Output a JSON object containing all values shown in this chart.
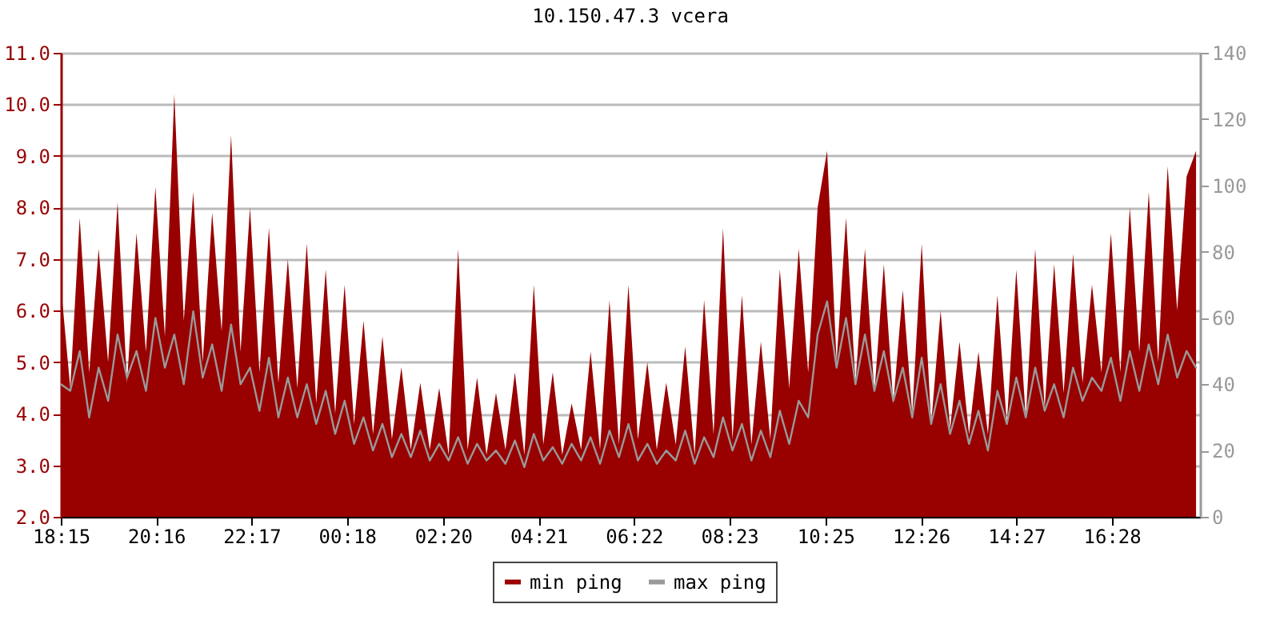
{
  "chart_data": {
    "type": "area",
    "title": "10.150.47.3 vcera",
    "x": [
      "--01-01T18:15",
      "--01-01T18:27",
      "--01-01T18:39",
      "--01-01T18:51",
      "--01-01T19:03",
      "--01-01T19:15",
      "--01-01T19:27",
      "--01-01T19:39",
      "--01-01T19:51",
      "--01-01T20:03",
      "--01-01T20:15",
      "--01-01T20:27",
      "--01-01T20:39",
      "--01-01T20:51",
      "--01-01T21:03",
      "--01-01T21:15",
      "--01-01T21:27",
      "--01-01T21:39",
      "--01-01T21:51",
      "--01-01T22:03",
      "--01-01T22:15",
      "--01-01T22:27",
      "--01-01T22:39",
      "--01-01T22:51",
      "--01-01T23:03",
      "--01-01T23:15",
      "--01-01T23:27",
      "--01-01T23:39",
      "--01-01T23:51",
      "--01-02T00:03",
      "--01-02T00:15",
      "--01-02T00:27",
      "--01-02T00:39",
      "--01-02T00:51",
      "--01-02T01:03",
      "--01-02T01:15",
      "--01-02T01:27",
      "--01-02T01:39",
      "--01-02T01:51",
      "--01-02T02:03",
      "--01-02T02:15",
      "--01-02T02:27",
      "--01-02T02:39",
      "--01-02T02:51",
      "--01-02T03:03",
      "--01-02T03:15",
      "--01-02T03:27",
      "--01-02T03:39",
      "--01-02T03:51",
      "--01-02T04:03",
      "--01-02T04:15",
      "--01-02T04:27",
      "--01-02T04:39",
      "--01-02T04:51",
      "--01-02T05:03",
      "--01-02T05:15",
      "--01-02T05:27",
      "--01-02T05:39",
      "--01-02T05:51",
      "--01-02T06:03",
      "--01-02T06:15",
      "--01-02T06:27",
      "--01-02T06:39",
      "--01-02T06:51",
      "--01-02T07:03",
      "--01-02T07:15",
      "--01-02T07:27",
      "--01-02T07:39",
      "--01-02T07:51",
      "--01-02T08:03",
      "--01-02T08:15",
      "--01-02T08:27",
      "--01-02T08:39",
      "--01-02T08:51",
      "--01-02T09:03",
      "--01-02T09:15",
      "--01-02T09:27",
      "--01-02T09:39",
      "--01-02T09:51",
      "--01-02T10:03",
      "--01-02T10:15",
      "--01-02T10:27",
      "--01-02T10:39",
      "--01-02T10:51",
      "--01-02T11:03",
      "--01-02T11:15",
      "--01-02T11:27",
      "--01-02T11:39",
      "--01-02T11:51",
      "--01-02T12:03",
      "--01-02T12:15",
      "--01-02T12:27",
      "--01-02T12:39",
      "--01-02T12:51",
      "--01-02T13:03",
      "--01-02T13:15",
      "--01-02T13:27",
      "--01-02T13:39",
      "--01-02T13:51",
      "--01-02T14:03",
      "--01-02T14:15",
      "--01-02T14:27",
      "--01-02T14:39",
      "--01-02T14:51",
      "--01-02T15:03",
      "--01-02T15:15",
      "--01-02T15:27",
      "--01-02T15:39",
      "--01-02T15:51",
      "--01-02T16:03",
      "--01-02T16:15",
      "--01-02T16:27",
      "--01-02T16:39",
      "--01-02T16:51",
      "--01-02T17:03",
      "--01-02T17:15",
      "--01-02T17:27",
      "--01-02T17:39",
      "--01-02T17:51",
      "--01-02T18:03",
      "--01-02T18:15"
    ],
    "series": [
      {
        "name": "min ping",
        "color": "#990000",
        "values": [
          6.5,
          4.5,
          7.8,
          4.8,
          7.2,
          5.0,
          8.1,
          4.6,
          7.5,
          5.2,
          8.4,
          5.5,
          10.2,
          5.8,
          8.3,
          5.0,
          7.9,
          5.6,
          9.4,
          5.2,
          8.0,
          4.8,
          7.6,
          4.6,
          7.0,
          4.5,
          7.3,
          4.2,
          6.8,
          4.0,
          6.5,
          3.8,
          5.8,
          3.6,
          5.5,
          3.5,
          4.9,
          3.3,
          4.6,
          3.3,
          4.5,
          3.2,
          7.2,
          3.3,
          4.7,
          3.2,
          4.4,
          3.3,
          4.8,
          3.2,
          6.5,
          3.4,
          4.8,
          3.2,
          4.2,
          3.3,
          5.2,
          3.3,
          6.2,
          3.4,
          6.5,
          3.5,
          5.0,
          3.3,
          4.6,
          3.4,
          5.3,
          3.2,
          6.2,
          3.6,
          7.6,
          3.5,
          6.3,
          3.4,
          5.4,
          3.5,
          6.8,
          4.5,
          7.2,
          4.8,
          8.0,
          9.1,
          5.0,
          7.8,
          4.6,
          7.2,
          4.4,
          6.9,
          4.2,
          6.4,
          4.0,
          7.3,
          3.8,
          6.0,
          3.7,
          5.4,
          3.6,
          5.2,
          3.6,
          6.3,
          3.8,
          6.8,
          3.9,
          7.2,
          4.1,
          6.9,
          4.4,
          7.1,
          4.6,
          6.5,
          4.8,
          7.5,
          4.8,
          8.0,
          5.2,
          8.3,
          5.0,
          8.8,
          6.0,
          8.6,
          9.1
        ]
      },
      {
        "name": "max ping",
        "type": "line",
        "axis": "y2",
        "color": "#999999",
        "values": [
          40,
          38,
          50,
          30,
          45,
          35,
          55,
          42,
          50,
          38,
          60,
          45,
          55,
          40,
          62,
          42,
          52,
          38,
          58,
          40,
          45,
          32,
          48,
          30,
          42,
          30,
          40,
          28,
          38,
          25,
          35,
          22,
          30,
          20,
          28,
          18,
          25,
          18,
          26,
          17,
          22,
          17,
          24,
          16,
          22,
          17,
          20,
          16,
          23,
          15,
          25,
          17,
          21,
          16,
          22,
          17,
          24,
          16,
          26,
          18,
          28,
          17,
          22,
          16,
          20,
          17,
          26,
          16,
          24,
          18,
          30,
          20,
          28,
          17,
          26,
          18,
          32,
          22,
          35,
          30,
          55,
          65,
          45,
          60,
          40,
          55,
          38,
          50,
          35,
          45,
          30,
          48,
          28,
          40,
          25,
          35,
          22,
          32,
          20,
          38,
          28,
          42,
          30,
          45,
          32,
          40,
          30,
          45,
          35,
          42,
          38,
          48,
          35,
          50,
          38,
          52,
          40,
          55,
          42,
          50,
          45
        ]
      }
    ],
    "xlim": [
      "--01-01T18:15",
      "--01-02T18:20"
    ],
    "xticks": [
      {
        "value": "--01-01T18:15",
        "label": "18:15"
      },
      {
        "value": "--01-01T20:16",
        "label": "20:16"
      },
      {
        "value": "--01-01T22:17",
        "label": "22:17"
      },
      {
        "value": "--01-02T00:18",
        "label": "00:18"
      },
      {
        "value": "--01-02T02:20",
        "label": "02:20"
      },
      {
        "value": "--01-02T04:21",
        "label": "04:21"
      },
      {
        "value": "--01-02T06:22",
        "label": "06:22"
      },
      {
        "value": "--01-02T08:23",
        "label": "08:23"
      },
      {
        "value": "--01-02T10:25",
        "label": "10:25"
      },
      {
        "value": "--01-02T12:26",
        "label": "12:26"
      },
      {
        "value": "--01-02T14:27",
        "label": "14:27"
      },
      {
        "value": "--01-02T16:28",
        "label": "16:28"
      }
    ],
    "ylim": [
      2,
      11
    ],
    "yticks": [
      {
        "value": 2,
        "label": "2.0"
      },
      {
        "value": 3,
        "label": "3.0"
      },
      {
        "value": 4,
        "label": "4.0"
      },
      {
        "value": 5,
        "label": "5.0"
      },
      {
        "value": 6,
        "label": "6.0"
      },
      {
        "value": 7,
        "label": "7.0"
      },
      {
        "value": 8,
        "label": "8.0"
      },
      {
        "value": 9,
        "label": "9.0"
      },
      {
        "value": 10,
        "label": "10.0"
      },
      {
        "value": 11,
        "label": "11.0"
      }
    ],
    "y2lim": [
      0,
      140
    ],
    "y2ticks": [
      0,
      20,
      40,
      60,
      80,
      100,
      120,
      140
    ],
    "grid": "y",
    "legend": "bottom"
  }
}
